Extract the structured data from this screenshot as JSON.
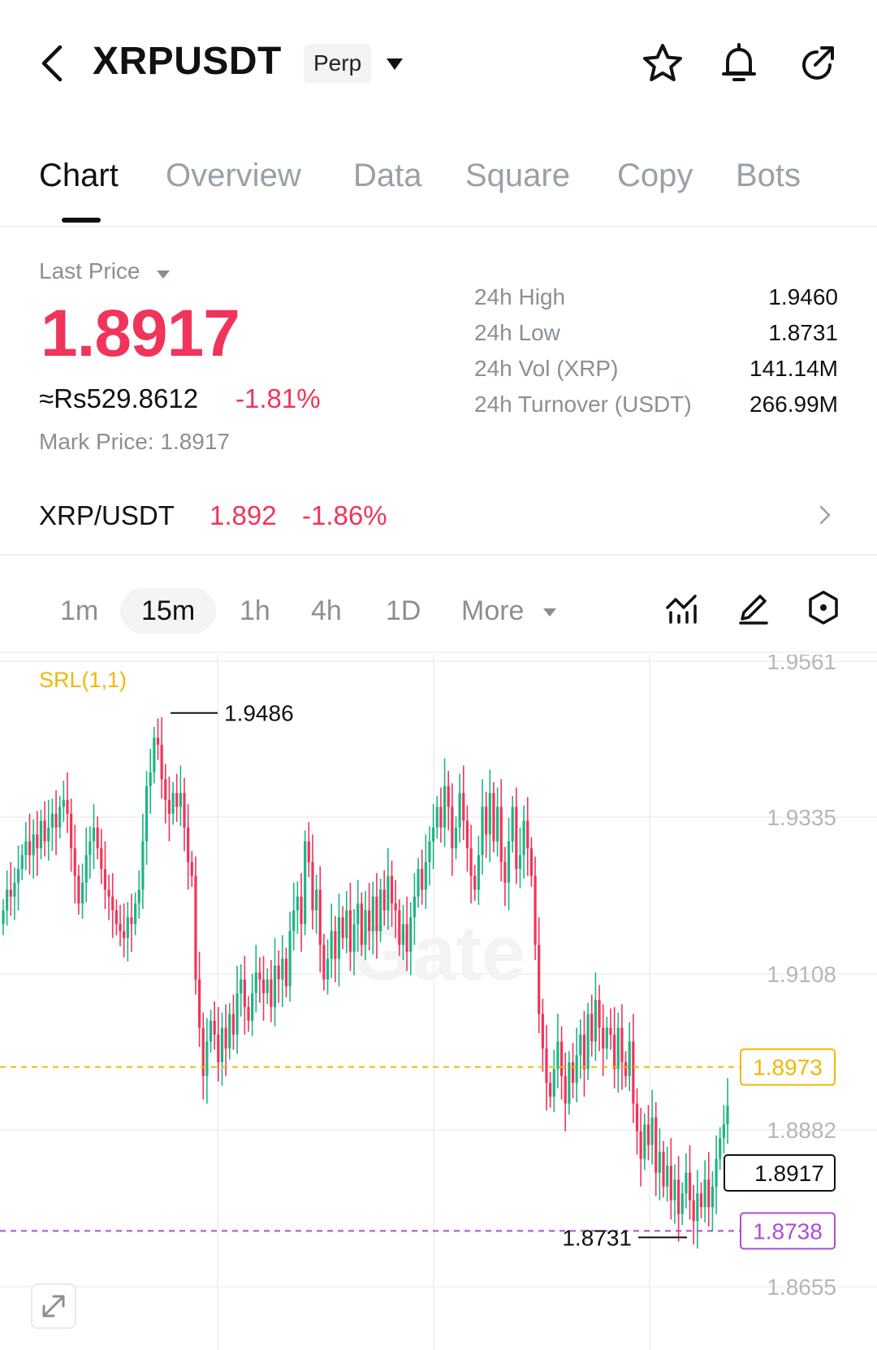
{
  "header": {
    "symbol": "XRPUSDT",
    "badge": "Perp",
    "icons": [
      "back-icon",
      "dropdown-caret-icon",
      "star-icon",
      "bell-icon",
      "share-icon"
    ]
  },
  "tabs": [
    {
      "label": "Chart",
      "active": true
    },
    {
      "label": "Overview"
    },
    {
      "label": "Data"
    },
    {
      "label": "Square"
    },
    {
      "label": "Copy"
    },
    {
      "label": "Bots"
    }
  ],
  "price": {
    "last_price_label": "Last Price",
    "last_price": "1.8917",
    "local_price": "≈Rs529.8612",
    "change_pct": "-1.81%",
    "mark_price": "Mark Price:  1.8917",
    "up_color": "#1db584",
    "down_color": "#f0345a"
  },
  "stats": [
    {
      "label": "24h  High",
      "value": "1.9460"
    },
    {
      "label": "24h  Low",
      "value": "1.8731"
    },
    {
      "label": "24h  Vol (XRP)",
      "value": "141.14M"
    },
    {
      "label": "24h  Turnover (USDT)",
      "value": "266.99M"
    }
  ],
  "spot": {
    "pair": "XRP/USDT",
    "price": "1.892",
    "change": "-1.86%"
  },
  "intervals": {
    "items": [
      "1m",
      "15m",
      "1h",
      "4h",
      "1D"
    ],
    "active": "15m",
    "more_label": "More",
    "tool_icons": [
      "indicators-icon",
      "draw-pen-icon",
      "settings-hex-icon"
    ]
  },
  "chart": {
    "indicator_label": "SRL(1,1)",
    "watermark": "Gate"
  },
  "chart_data": {
    "type": "candlestick",
    "interval": "15m",
    "y_ticks": [
      "1.9561",
      "1.9335",
      "1.9108",
      "1.8882",
      "1.8655"
    ],
    "high_marker": "1.9486",
    "low_marker": "1.8731",
    "current_price_label": "1.8917",
    "srl_upper_label": "1.8973",
    "srl_lower_label": "1.8738",
    "srl_upper_color": "#f2b705",
    "srl_lower_color": "#b04bd8",
    "ylim": [
      1.8655,
      1.9561
    ],
    "closes": [
      1.92,
      1.923,
      1.922,
      1.924,
      1.926,
      1.928,
      1.93,
      1.928,
      1.931,
      1.929,
      1.933,
      1.93,
      1.932,
      1.934,
      1.932,
      1.935,
      1.936,
      1.934,
      1.929,
      1.925,
      1.921,
      1.924,
      1.928,
      1.93,
      1.932,
      1.929,
      1.926,
      1.923,
      1.922,
      1.92,
      1.918,
      1.917,
      1.916,
      1.919,
      1.918,
      1.921,
      1.923,
      1.93,
      1.938,
      1.94,
      1.945,
      1.944,
      1.939,
      1.936,
      1.934,
      1.937,
      1.935,
      1.937,
      1.932,
      1.927,
      1.925,
      1.91,
      1.903,
      1.896,
      1.901,
      1.904,
      1.902,
      1.898,
      1.903,
      1.9,
      1.905,
      1.902,
      1.908,
      1.91,
      1.906,
      1.904,
      1.908,
      1.911,
      1.91,
      1.908,
      1.91,
      1.906,
      1.912,
      1.91,
      1.913,
      1.909,
      1.917,
      1.92,
      1.922,
      1.918,
      1.93,
      1.927,
      1.92,
      1.923,
      1.915,
      1.91,
      1.913,
      1.917,
      1.913,
      1.919,
      1.916,
      1.92,
      1.914,
      1.918,
      1.921,
      1.915,
      1.92,
      1.917,
      1.922,
      1.917,
      1.923,
      1.92,
      1.925,
      1.921,
      1.92,
      1.915,
      1.918,
      1.914,
      1.919,
      1.922,
      1.926,
      1.923,
      1.927,
      1.93,
      1.932,
      1.935,
      1.932,
      1.938,
      1.935,
      1.929,
      1.932,
      1.937,
      1.933,
      1.929,
      1.925,
      1.923,
      1.928,
      1.935,
      1.931,
      1.937,
      1.93,
      1.935,
      1.927,
      1.924,
      1.93,
      1.935,
      1.926,
      1.928,
      1.933,
      1.929,
      1.925,
      1.915,
      1.905,
      1.9,
      1.895,
      1.893,
      1.897,
      1.901,
      1.896,
      1.892,
      1.898,
      1.895,
      1.899,
      1.902,
      1.897,
      1.905,
      1.901,
      1.907,
      1.903,
      1.9,
      1.903,
      1.902,
      1.897,
      1.903,
      1.898,
      1.896,
      1.901,
      1.892,
      1.888,
      1.884,
      1.889,
      1.886,
      1.89,
      1.882,
      1.885,
      1.88,
      1.883,
      1.878,
      1.881,
      1.876,
      1.879,
      1.882,
      1.878,
      1.875,
      1.879,
      1.877,
      1.881,
      1.877,
      1.88,
      1.884,
      1.887,
      1.889,
      1.8917
    ]
  }
}
